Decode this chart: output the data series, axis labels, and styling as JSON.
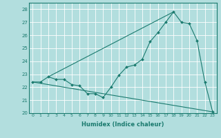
{
  "xlabel": "Humidex (Indice chaleur)",
  "ylabel": "",
  "xlim": [
    -0.5,
    23.5
  ],
  "ylim": [
    20,
    28.5
  ],
  "yticks": [
    20,
    21,
    22,
    23,
    24,
    25,
    26,
    27,
    28
  ],
  "xticks": [
    0,
    1,
    2,
    3,
    4,
    5,
    6,
    7,
    8,
    9,
    10,
    11,
    12,
    13,
    14,
    15,
    16,
    17,
    18,
    19,
    20,
    21,
    22,
    23
  ],
  "bg_color": "#b2dede",
  "grid_color": "#ffffff",
  "line_color": "#1a7a6e",
  "series": [
    {
      "x": [
        0,
        1,
        2,
        3,
        4,
        5,
        6,
        7,
        8,
        9,
        10,
        11,
        12,
        13,
        14,
        15,
        16,
        17,
        18,
        19,
        20,
        21,
        22,
        23
      ],
      "y": [
        22.4,
        22.4,
        22.8,
        22.6,
        22.6,
        22.2,
        22.1,
        21.5,
        21.5,
        21.2,
        22.0,
        22.9,
        23.55,
        23.7,
        24.15,
        25.5,
        26.2,
        27.0,
        27.8,
        27.0,
        26.9,
        25.6,
        22.4,
        20.1
      ],
      "has_markers": true
    },
    {
      "x": [
        0,
        23
      ],
      "y": [
        22.4,
        20.1
      ],
      "has_markers": false
    },
    {
      "x": [
        2,
        18
      ],
      "y": [
        22.8,
        27.8
      ],
      "has_markers": false
    }
  ]
}
